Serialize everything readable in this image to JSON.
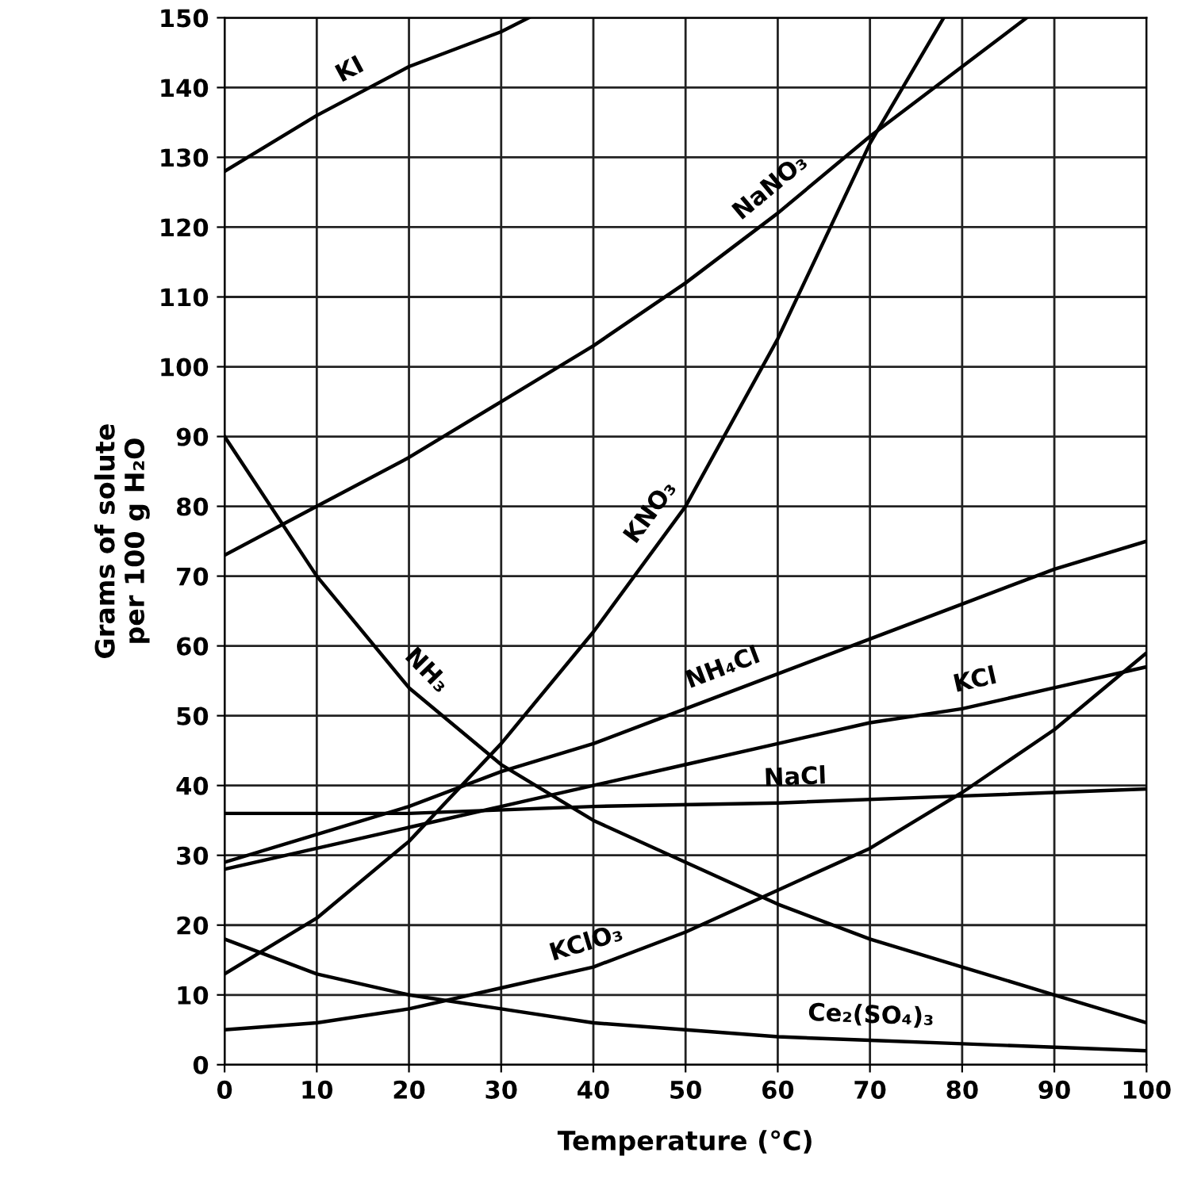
{
  "chart_data": {
    "type": "line",
    "xlabel": "Temperature (°C)",
    "ylabel": "Grams of solute\nper 100 g H₂O",
    "xlim": [
      0,
      100
    ],
    "ylim": [
      0,
      150
    ],
    "xticks": [
      0,
      10,
      20,
      30,
      40,
      50,
      60,
      70,
      80,
      90,
      100
    ],
    "yticks": [
      0,
      10,
      20,
      30,
      40,
      50,
      60,
      70,
      80,
      90,
      100,
      110,
      120,
      130,
      140,
      150
    ],
    "grid": true,
    "legend": false,
    "marker": "none",
    "line_style": "solid",
    "series": [
      {
        "name": "KI",
        "color": "#000000",
        "x": [
          0,
          10,
          20,
          30,
          33
        ],
        "values": [
          128,
          136,
          143,
          148,
          150
        ]
      },
      {
        "name": "NaNO₃",
        "color": "#000000",
        "x": [
          0,
          10,
          20,
          30,
          40,
          50,
          60,
          70,
          80,
          87
        ],
        "values": [
          73,
          80,
          87,
          95,
          103,
          112,
          122,
          133,
          143,
          150
        ]
      },
      {
        "name": "KNO₃",
        "color": "#000000",
        "x": [
          0,
          10,
          20,
          30,
          40,
          50,
          60,
          70,
          78
        ],
        "values": [
          13,
          21,
          32,
          46,
          62,
          80,
          104,
          132,
          150
        ]
      },
      {
        "name": "NH₃",
        "color": "#000000",
        "x": [
          0,
          10,
          20,
          30,
          40,
          50,
          60,
          70,
          80,
          90,
          100
        ],
        "values": [
          90,
          70,
          54,
          43,
          35,
          29,
          23,
          18,
          14,
          10,
          6
        ]
      },
      {
        "name": "NH₄Cl",
        "color": "#000000",
        "x": [
          0,
          10,
          20,
          30,
          40,
          50,
          60,
          70,
          80,
          90,
          100
        ],
        "values": [
          29,
          33,
          37,
          42,
          46,
          51,
          56,
          61,
          66,
          71,
          75
        ]
      },
      {
        "name": "KCl",
        "color": "#000000",
        "x": [
          0,
          10,
          20,
          30,
          40,
          50,
          60,
          70,
          80,
          90,
          100
        ],
        "values": [
          28,
          31,
          34,
          37,
          40,
          43,
          46,
          49,
          51,
          54,
          57
        ]
      },
      {
        "name": "NaCl",
        "color": "#000000",
        "x": [
          0,
          20,
          40,
          60,
          80,
          100
        ],
        "values": [
          36,
          36,
          37,
          37.5,
          38.5,
          39.5
        ]
      },
      {
        "name": "KClO₃",
        "color": "#000000",
        "x": [
          0,
          10,
          20,
          30,
          40,
          50,
          60,
          70,
          80,
          90,
          100
        ],
        "values": [
          5,
          6,
          8,
          11,
          14,
          19,
          25,
          31,
          39,
          48,
          59
        ]
      },
      {
        "name": "Ce₂(SO₄)₃",
        "color": "#000000",
        "x": [
          0,
          10,
          20,
          30,
          40,
          50,
          60,
          70,
          80,
          90,
          100
        ],
        "values": [
          18,
          13,
          10,
          8,
          6,
          5,
          4,
          3.5,
          3,
          2.5,
          2
        ]
      }
    ]
  }
}
